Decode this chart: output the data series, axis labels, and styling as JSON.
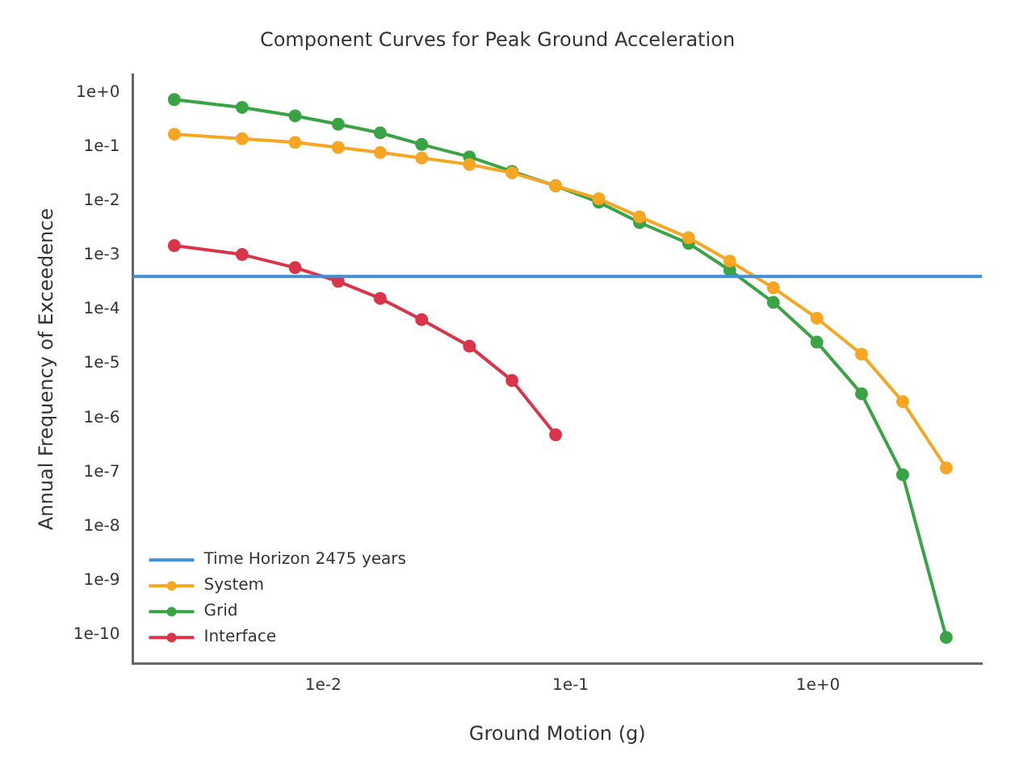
{
  "chart_data": {
    "type": "line",
    "title": "Component Curves for Peak Ground Acceleration",
    "xlabel": "Ground Motion (g)",
    "ylabel": "Annual Frequency of Exceedence",
    "log": "xy",
    "grid": false,
    "legend": "bottom left",
    "marker": "circle",
    "line_style": "solid",
    "xlim": [
      0.0017,
      4.6
    ],
    "xticks": [
      {
        "value": 0.01,
        "label": "1e-2"
      },
      {
        "value": 0.1,
        "label": "1e-1"
      },
      {
        "value": 1,
        "label": "1e+0"
      }
    ],
    "ylim": [
      3e-11,
      2.1
    ],
    "yticks": [
      {
        "value": 1,
        "label": "1e+0"
      },
      {
        "value": 0.1,
        "label": "1e-1"
      },
      {
        "value": 0.01,
        "label": "1e-2"
      },
      {
        "value": 0.001,
        "label": "1e-3"
      },
      {
        "value": 0.0001,
        "label": "1e-4"
      },
      {
        "value": 1e-05,
        "label": "1e-5"
      },
      {
        "value": 1e-06,
        "label": "1e-6"
      },
      {
        "value": 1e-07,
        "label": "1e-7"
      },
      {
        "value": 1e-08,
        "label": "1e-8"
      },
      {
        "value": 1e-09,
        "label": "1e-9"
      },
      {
        "value": 1e-10,
        "label": "1e-10"
      }
    ],
    "x": [
      0.0025,
      0.0047,
      0.0077,
      0.0115,
      0.017,
      0.025,
      0.039,
      0.058,
      0.087,
      0.13,
      0.19,
      0.3,
      0.44,
      0.66,
      0.99,
      1.5,
      2.2,
      3.3
    ],
    "series": [
      {
        "name": "Time Horizon 2475 years",
        "color": "#3d8fd6",
        "marker": "none",
        "x": [
          0.0017,
          4.6
        ],
        "values": [
          0.000404,
          0.000404
        ]
      },
      {
        "name": "System",
        "color": "#f5a623",
        "values": [
          0.17,
          0.14,
          0.12,
          0.097,
          0.078,
          0.062,
          0.047,
          0.033,
          0.019,
          0.011,
          0.0051,
          0.0021,
          0.00078,
          0.00025,
          6.9e-05,
          1.5e-05,
          2e-06,
          1.2e-07
        ]
      },
      {
        "name": "Grid",
        "color": "#3aa345",
        "values": [
          0.74,
          0.53,
          0.37,
          0.26,
          0.18,
          0.11,
          0.065,
          0.035,
          0.019,
          0.0095,
          0.004,
          0.00165,
          0.00053,
          0.000135,
          2.5e-05,
          2.8e-06,
          9e-08,
          9e-11
        ]
      },
      {
        "name": "Interface",
        "color": "#d9344a",
        "values": [
          0.0015,
          0.00103,
          0.00059,
          0.00033,
          0.00016,
          6.5e-05,
          2.1e-05,
          4.9e-06,
          4.9e-07,
          null,
          null,
          null,
          null,
          null,
          null,
          null,
          null,
          null
        ]
      }
    ]
  }
}
